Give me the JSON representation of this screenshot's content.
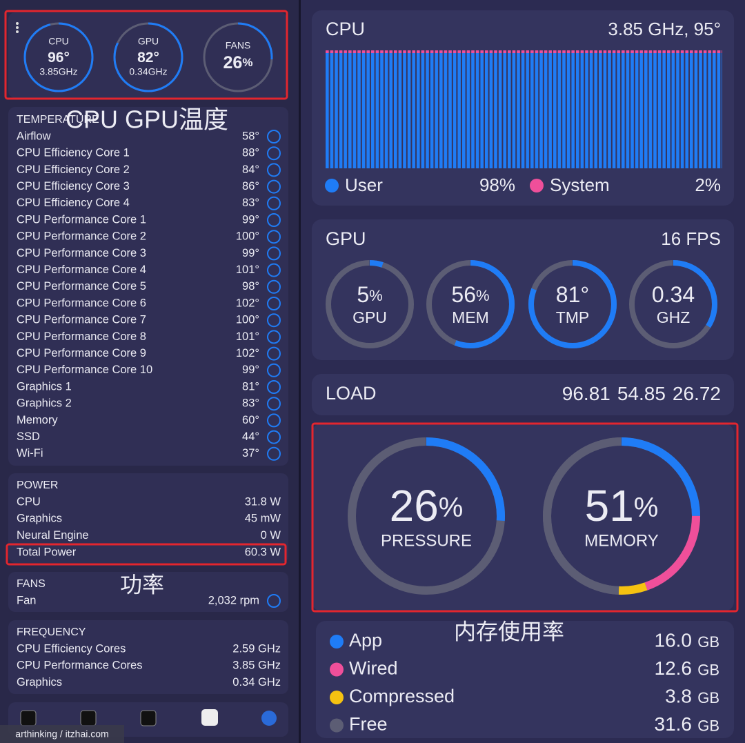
{
  "left": {
    "gauges": [
      {
        "label": "CPU",
        "value": 96,
        "unit": "°",
        "sub": "3.85GHz"
      },
      {
        "label": "GPU",
        "value": 82,
        "unit": "°",
        "sub": "0.34GHz"
      },
      {
        "label": "FANS",
        "value": 26,
        "unit": "%"
      }
    ],
    "temperature": {
      "title": "TEMPERATURE",
      "rows": [
        [
          "Airflow",
          "58°"
        ],
        [
          "CPU Efficiency Core 1",
          "88°"
        ],
        [
          "CPU Efficiency Core 2",
          "84°"
        ],
        [
          "CPU Efficiency Core 3",
          "86°"
        ],
        [
          "CPU Efficiency Core 4",
          "83°"
        ],
        [
          "CPU Performance Core 1",
          "99°"
        ],
        [
          "CPU Performance Core 2",
          "100°"
        ],
        [
          "CPU Performance Core 3",
          "99°"
        ],
        [
          "CPU Performance Core 4",
          "101°"
        ],
        [
          "CPU Performance Core 5",
          "98°"
        ],
        [
          "CPU Performance Core 6",
          "102°"
        ],
        [
          "CPU Performance Core 7",
          "100°"
        ],
        [
          "CPU Performance Core 8",
          "101°"
        ],
        [
          "CPU Performance Core 9",
          "102°"
        ],
        [
          "CPU Performance Core 10",
          "99°"
        ],
        [
          "Graphics 1",
          "81°"
        ],
        [
          "Graphics 2",
          "83°"
        ],
        [
          "Memory",
          "60°"
        ],
        [
          "SSD",
          "44°"
        ],
        [
          "Wi-Fi",
          "37°"
        ]
      ]
    },
    "power": {
      "title": "POWER",
      "rows": [
        [
          "CPU",
          "31.8 W"
        ],
        [
          "Graphics",
          "45 mW"
        ],
        [
          "Neural Engine",
          "0 W"
        ],
        [
          "Total Power",
          "60.3 W"
        ]
      ]
    },
    "fans": {
      "title": "FANS",
      "rows": [
        [
          "Fan",
          "2,032 rpm"
        ]
      ]
    },
    "frequency": {
      "title": "FREQUENCY",
      "rows": [
        [
          "CPU Efficiency Cores",
          "2.59 GHz"
        ],
        [
          "CPU Performance Cores",
          "3.85 GHz"
        ],
        [
          "Graphics",
          "0.34 GHz"
        ]
      ]
    },
    "watermark": "arthinking / itzhai.com"
  },
  "right": {
    "cpu": {
      "title": "CPU",
      "summary": "3.85 GHz, 95°",
      "legend": [
        {
          "name": "User",
          "value": "98%",
          "color": "#1f7cf6"
        },
        {
          "name": "System",
          "value": "2%",
          "color": "#ef4f9a"
        }
      ]
    },
    "gpu": {
      "title": "GPU",
      "fps": "16 FPS",
      "rings": [
        {
          "value": 5,
          "unit": "%",
          "label": "GPU"
        },
        {
          "value": 56,
          "unit": "%",
          "label": "MEM"
        },
        {
          "value": 81,
          "unit": "°",
          "label": "TMP"
        },
        {
          "value": 0.34,
          "label": "GHZ"
        }
      ]
    },
    "load": {
      "title": "LOAD",
      "values": [
        96.81,
        54.85,
        26.72
      ]
    },
    "pressure": {
      "value": 26,
      "unit": "%",
      "label": "PRESSURE"
    },
    "memory": {
      "value": 51,
      "unit": "%",
      "label": "MEMORY",
      "item_unit": "GB",
      "items": [
        {
          "name": "App",
          "color": "#1f7cf6",
          "value": 16,
          "label": "16.0"
        },
        {
          "name": "Wired",
          "color": "#ef4f9a",
          "value": 12.6
        },
        {
          "name": "Compressed",
          "color": "#f5c211",
          "value": 3.8
        },
        {
          "name": "Free",
          "color": "#5c5d74",
          "value": 31.6
        }
      ]
    }
  },
  "annotations": [
    "CPU GPU温度",
    "功率",
    "内存使用率"
  ]
}
